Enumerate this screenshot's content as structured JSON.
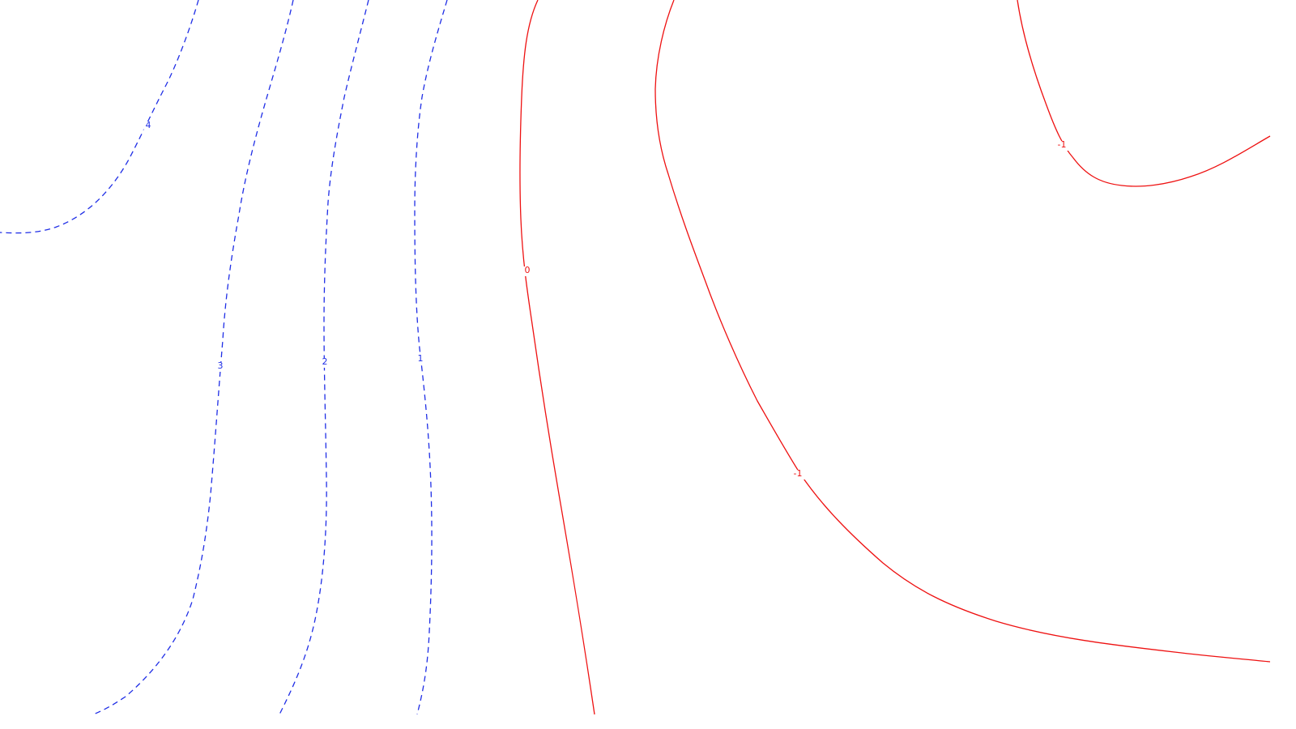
{
  "chart_data": {
    "type": "contour",
    "title": "",
    "xlabel": "",
    "ylabel": "",
    "grid": false,
    "legend": "none",
    "colors": {
      "positive": "#1f2ee6",
      "negative": "#ee1111",
      "background": "#ffffff"
    },
    "line_styles": {
      "positive": "dashed",
      "negative": "solid"
    },
    "levels": [
      {
        "id": "level-4",
        "value": 4,
        "label": "4",
        "sign": "positive"
      },
      {
        "id": "level-3",
        "value": 3,
        "label": "3",
        "sign": "positive"
      },
      {
        "id": "level-2",
        "value": 2,
        "label": "2",
        "sign": "positive"
      },
      {
        "id": "level-1",
        "value": 1,
        "label": "1",
        "sign": "positive"
      },
      {
        "id": "level-0",
        "value": 0,
        "label": "0",
        "sign": "negative"
      },
      {
        "id": "level-neg1-main",
        "value": -1,
        "label": "-1",
        "sign": "negative"
      },
      {
        "id": "level-neg1-corner",
        "value": -1,
        "label": "-1",
        "sign": "negative"
      }
    ]
  }
}
